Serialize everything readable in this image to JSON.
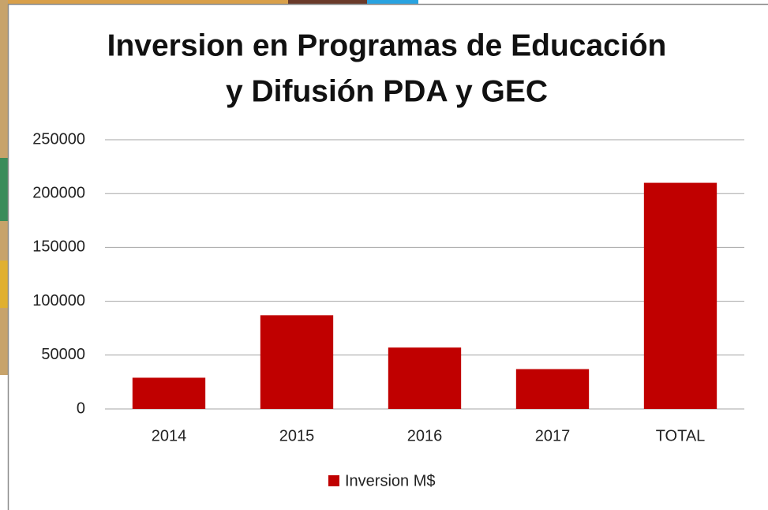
{
  "chart_data": {
    "type": "bar",
    "title": [
      "Inversion en Programas de Educación",
      "y Difusión PDA y GEC"
    ],
    "categories": [
      "2014",
      "2015",
      "2016",
      "2017",
      "TOTAL"
    ],
    "series": [
      {
        "name": "Inversion M$",
        "color": "#c00000",
        "values": [
          29000,
          87000,
          57000,
          37000,
          210000
        ]
      }
    ],
    "ylim": [
      0,
      250000
    ],
    "yticks": [
      0,
      50000,
      100000,
      150000,
      200000,
      250000
    ],
    "grid": true,
    "legend": "bottom"
  }
}
